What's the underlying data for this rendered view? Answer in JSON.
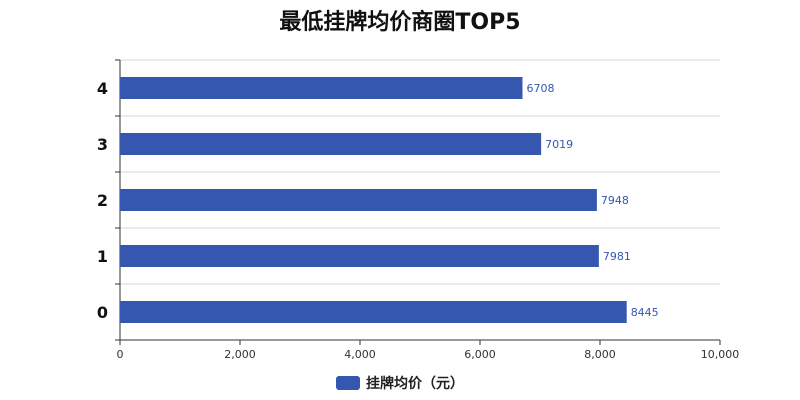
{
  "chart_data": {
    "type": "bar",
    "orientation": "horizontal",
    "title": "最低挂牌均价商圈TOP5",
    "categories": [
      "0",
      "1",
      "2",
      "3",
      "4"
    ],
    "series": [
      {
        "name": "挂牌均价（元）",
        "values": [
          8445,
          7981,
          7948,
          7019,
          6708
        ]
      }
    ],
    "xlim": [
      0,
      10000
    ],
    "xticks": [
      "0",
      "2,000",
      "4,000",
      "6,000",
      "8,000",
      "10,000"
    ],
    "grid": true,
    "legend_position": "bottom-center",
    "bar_color": "#3557b0",
    "label_color": "#3557b0"
  }
}
